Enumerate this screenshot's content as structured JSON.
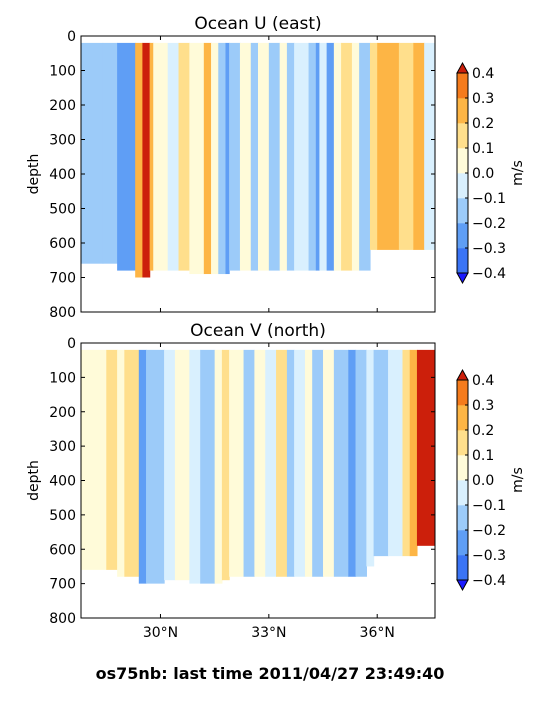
{
  "figure_caption": "os75nb: last time 2011/04/27 23:49:40",
  "colorbar": {
    "label": "m/s",
    "levels": [
      -0.4,
      -0.3,
      -0.2,
      -0.1,
      0.0,
      0.1,
      0.2,
      0.3,
      0.4
    ],
    "tick_labels": [
      "−0.4",
      "−0.3",
      "−0.2",
      "−0.1",
      "0.0",
      "0.1",
      "0.2",
      "0.3",
      "0.4"
    ],
    "colors": [
      "#1a1aff",
      "#3a74f5",
      "#5f9ef5",
      "#9ccbf9",
      "#d9f0fe",
      "#fffbd9",
      "#ffdf8c",
      "#fdb545",
      "#f57b1c",
      "#e0320e"
    ],
    "under_color": "#1a1aff",
    "over_color": "#cc1f0b"
  },
  "chart_data": [
    {
      "type": "heatmap",
      "title": "Ocean U (east)",
      "xlabel": "",
      "ylabel": "depth",
      "units": "m/s",
      "xlim": [
        27.8,
        37.6
      ],
      "ylim": [
        800,
        0
      ],
      "x_ticks": [
        30,
        33,
        36
      ],
      "x_tick_labels": [
        "30°N",
        "33°N",
        "36°N"
      ],
      "y_ticks": [
        0,
        100,
        200,
        300,
        400,
        500,
        600,
        700,
        800
      ],
      "y_tick_labels": [
        "0",
        "100",
        "200",
        "300",
        "400",
        "500",
        "600",
        "700",
        "800"
      ],
      "grid": false,
      "bands": [
        {
          "x": [
            27.8,
            28.4
          ],
          "value": -0.12,
          "max_depth": 660
        },
        {
          "x": [
            28.4,
            28.8
          ],
          "value": -0.15,
          "max_depth": 660
        },
        {
          "x": [
            28.8,
            29.3
          ],
          "value": -0.22,
          "max_depth": 680
        },
        {
          "x": [
            29.3,
            29.5
          ],
          "value": 0.22,
          "max_depth": 700
        },
        {
          "x": [
            29.5,
            29.7
          ],
          "value": 0.42,
          "max_depth": 700
        },
        {
          "x": [
            29.7,
            29.8
          ],
          "value": 0.3,
          "max_depth": 680
        },
        {
          "x": [
            29.8,
            30.2
          ],
          "value": 0.05,
          "max_depth": 680
        },
        {
          "x": [
            30.2,
            30.5
          ],
          "value": -0.05,
          "max_depth": 680
        },
        {
          "x": [
            30.5,
            30.8
          ],
          "value": 0.1,
          "max_depth": 680
        },
        {
          "x": [
            30.8,
            31.2
          ],
          "value": 0.05,
          "max_depth": 690
        },
        {
          "x": [
            31.2,
            31.4
          ],
          "value": 0.22,
          "max_depth": 690
        },
        {
          "x": [
            31.4,
            31.6
          ],
          "value": 0.05,
          "max_depth": 690
        },
        {
          "x": [
            31.6,
            31.8
          ],
          "value": -0.12,
          "max_depth": 690
        },
        {
          "x": [
            31.8,
            31.9
          ],
          "value": -0.22,
          "max_depth": 690
        },
        {
          "x": [
            31.9,
            32.2
          ],
          "value": -0.12,
          "max_depth": 680
        },
        {
          "x": [
            32.2,
            32.5
          ],
          "value": 0.05,
          "max_depth": 680
        },
        {
          "x": [
            32.5,
            32.7
          ],
          "value": -0.15,
          "max_depth": 680
        },
        {
          "x": [
            32.7,
            33.0
          ],
          "value": 0.05,
          "max_depth": 680
        },
        {
          "x": [
            33.0,
            33.3
          ],
          "value": -0.12,
          "max_depth": 680
        },
        {
          "x": [
            33.3,
            33.5
          ],
          "value": 0.05,
          "max_depth": 680
        },
        {
          "x": [
            33.5,
            33.7
          ],
          "value": -0.15,
          "max_depth": 680
        },
        {
          "x": [
            33.7,
            34.1
          ],
          "value": -0.05,
          "max_depth": 680
        },
        {
          "x": [
            34.1,
            34.3
          ],
          "value": -0.15,
          "max_depth": 680
        },
        {
          "x": [
            34.3,
            34.4
          ],
          "value": -0.22,
          "max_depth": 680
        },
        {
          "x": [
            34.4,
            34.6
          ],
          "value": -0.05,
          "max_depth": 680
        },
        {
          "x": [
            34.6,
            34.8
          ],
          "value": -0.22,
          "max_depth": 680
        },
        {
          "x": [
            34.8,
            35.0
          ],
          "value": 0.05,
          "max_depth": 680
        },
        {
          "x": [
            35.0,
            35.3
          ],
          "value": 0.12,
          "max_depth": 680
        },
        {
          "x": [
            35.3,
            35.5
          ],
          "value": 0.05,
          "max_depth": 680
        },
        {
          "x": [
            35.5,
            35.8
          ],
          "value": -0.12,
          "max_depth": 680
        },
        {
          "x": [
            35.8,
            36.0
          ],
          "value": 0.12,
          "max_depth": 620
        },
        {
          "x": [
            36.0,
            36.6
          ],
          "value": 0.22,
          "max_depth": 620
        },
        {
          "x": [
            36.6,
            37.0
          ],
          "value": 0.12,
          "max_depth": 620
        },
        {
          "x": [
            37.0,
            37.3
          ],
          "value": 0.22,
          "max_depth": 620
        },
        {
          "x": [
            37.3,
            37.6
          ],
          "value": -0.05,
          "max_depth": 620
        }
      ]
    },
    {
      "type": "heatmap",
      "title": "Ocean V (north)",
      "xlabel": "",
      "ylabel": "depth",
      "units": "m/s",
      "xlim": [
        27.8,
        37.6
      ],
      "ylim": [
        800,
        0
      ],
      "x_ticks": [
        30,
        33,
        36
      ],
      "x_tick_labels": [
        "30°N",
        "33°N",
        "36°N"
      ],
      "y_ticks": [
        0,
        100,
        200,
        300,
        400,
        500,
        600,
        700,
        800
      ],
      "y_tick_labels": [
        "0",
        "100",
        "200",
        "300",
        "400",
        "500",
        "600",
        "700",
        "800"
      ],
      "grid": false,
      "bands": [
        {
          "x": [
            27.8,
            28.5
          ],
          "value": 0.05,
          "max_depth": 660
        },
        {
          "x": [
            28.5,
            28.8
          ],
          "value": 0.12,
          "max_depth": 660
        },
        {
          "x": [
            28.8,
            29.0
          ],
          "value": 0.05,
          "max_depth": 680
        },
        {
          "x": [
            29.0,
            29.4
          ],
          "value": 0.12,
          "max_depth": 680
        },
        {
          "x": [
            29.4,
            29.6
          ],
          "value": -0.22,
          "max_depth": 700
        },
        {
          "x": [
            29.6,
            30.1
          ],
          "value": -0.15,
          "max_depth": 700
        },
        {
          "x": [
            30.1,
            30.4
          ],
          "value": -0.05,
          "max_depth": 690
        },
        {
          "x": [
            30.4,
            30.8
          ],
          "value": 0.05,
          "max_depth": 690
        },
        {
          "x": [
            30.8,
            31.1
          ],
          "value": -0.05,
          "max_depth": 700
        },
        {
          "x": [
            31.1,
            31.5
          ],
          "value": -0.12,
          "max_depth": 700
        },
        {
          "x": [
            31.5,
            31.7
          ],
          "value": 0.05,
          "max_depth": 700
        },
        {
          "x": [
            31.7,
            31.9
          ],
          "value": 0.12,
          "max_depth": 690
        },
        {
          "x": [
            31.9,
            32.3
          ],
          "value": 0.05,
          "max_depth": 680
        },
        {
          "x": [
            32.3,
            32.6
          ],
          "value": -0.12,
          "max_depth": 680
        },
        {
          "x": [
            32.6,
            32.9
          ],
          "value": 0.05,
          "max_depth": 680
        },
        {
          "x": [
            32.9,
            33.2
          ],
          "value": -0.05,
          "max_depth": 680
        },
        {
          "x": [
            33.2,
            33.5
          ],
          "value": 0.12,
          "max_depth": 680
        },
        {
          "x": [
            33.5,
            33.7
          ],
          "value": -0.12,
          "max_depth": 680
        },
        {
          "x": [
            33.7,
            34.0
          ],
          "value": -0.05,
          "max_depth": 680
        },
        {
          "x": [
            34.0,
            34.2
          ],
          "value": 0.05,
          "max_depth": 680
        },
        {
          "x": [
            34.2,
            34.5
          ],
          "value": -0.12,
          "max_depth": 680
        },
        {
          "x": [
            34.5,
            34.8
          ],
          "value": 0.05,
          "max_depth": 680
        },
        {
          "x": [
            34.8,
            35.2
          ],
          "value": -0.15,
          "max_depth": 680
        },
        {
          "x": [
            35.2,
            35.4
          ],
          "value": -0.22,
          "max_depth": 680
        },
        {
          "x": [
            35.4,
            35.7
          ],
          "value": -0.12,
          "max_depth": 680
        },
        {
          "x": [
            35.7,
            35.9
          ],
          "value": -0.05,
          "max_depth": 650
        },
        {
          "x": [
            35.9,
            36.3
          ],
          "value": -0.15,
          "max_depth": 620
        },
        {
          "x": [
            36.3,
            36.7
          ],
          "value": -0.05,
          "max_depth": 620
        },
        {
          "x": [
            36.7,
            36.9
          ],
          "value": 0.12,
          "max_depth": 620
        },
        {
          "x": [
            36.9,
            37.1
          ],
          "value": 0.3,
          "max_depth": 620
        },
        {
          "x": [
            37.1,
            37.6
          ],
          "value": 0.42,
          "max_depth": 590
        }
      ]
    }
  ]
}
